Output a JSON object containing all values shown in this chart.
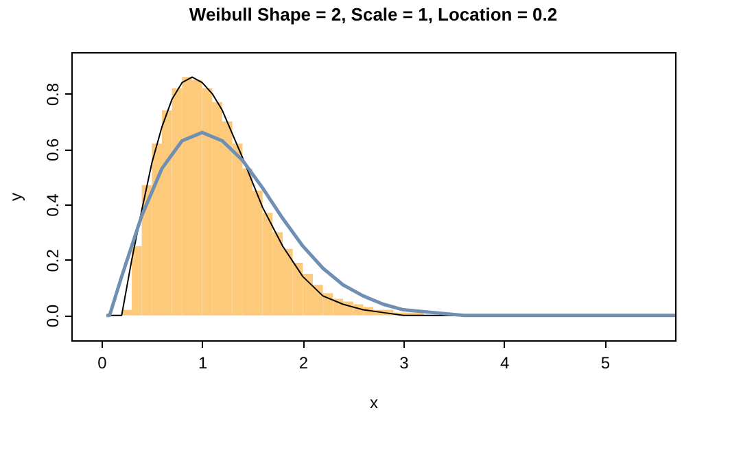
{
  "chart_data": {
    "type": "histogram",
    "title": "Weibull Shape = 2, Scale = 1, Location = 0.2",
    "xlabel": "x",
    "ylabel": "y",
    "bins": [
      0.2,
      0.3,
      0.4,
      0.5,
      0.6,
      0.7,
      0.8,
      0.9,
      1.0,
      1.1,
      1.2,
      1.3,
      1.4,
      1.5,
      1.6,
      1.7,
      1.8,
      1.9,
      2.0,
      2.1,
      2.2,
      2.3,
      2.4,
      2.5,
      2.6,
      2.7,
      2.8,
      2.9,
      3.0,
      3.1,
      3.2
    ],
    "values": [
      0.02,
      0.25,
      0.47,
      0.62,
      0.74,
      0.82,
      0.86,
      0.85,
      0.82,
      0.77,
      0.7,
      0.62,
      0.53,
      0.45,
      0.37,
      0.3,
      0.24,
      0.19,
      0.15,
      0.11,
      0.08,
      0.06,
      0.05,
      0.04,
      0.03,
      0.02,
      0.02,
      0.01,
      0.01,
      0.01
    ],
    "color": "#fdca7c",
    "series": [
      {
        "type": "line",
        "color": "#000000",
        "x": [
          0.05,
          0.2,
          0.3,
          0.4,
          0.5,
          0.6,
          0.7,
          0.8,
          0.9,
          1.0,
          1.1,
          1.2,
          1.4,
          1.6,
          1.8,
          2.0,
          2.2,
          2.4,
          2.6,
          2.8,
          3.0,
          3.3,
          4.0,
          5.7
        ],
        "values": [
          0,
          0,
          0.2,
          0.38,
          0.55,
          0.68,
          0.78,
          0.84,
          0.86,
          0.84,
          0.8,
          0.74,
          0.57,
          0.39,
          0.25,
          0.14,
          0.07,
          0.04,
          0.02,
          0.01,
          0,
          0,
          0,
          0
        ]
      },
      {
        "type": "line",
        "color": "#6f8fb3",
        "x": [
          0.05,
          0.08,
          0.2,
          0.4,
          0.6,
          0.8,
          1.0,
          1.2,
          1.4,
          1.6,
          1.8,
          2.0,
          2.2,
          2.4,
          2.6,
          2.8,
          3.0,
          3.3,
          3.6,
          4.0,
          5.7
        ],
        "values": [
          0,
          0,
          0.14,
          0.36,
          0.53,
          0.63,
          0.66,
          0.63,
          0.56,
          0.46,
          0.35,
          0.25,
          0.17,
          0.11,
          0.07,
          0.04,
          0.02,
          0.01,
          0,
          0,
          0
        ]
      }
    ],
    "xlim": [
      -0.3,
      5.7
    ],
    "ylim": [
      -0.09,
      0.95
    ],
    "xticks": [
      0,
      1,
      2,
      3,
      4,
      5
    ],
    "yticks": [
      {
        "value": 0,
        "label": "0.0"
      },
      {
        "value": 0.2,
        "label": "0.2"
      },
      {
        "value": 0.4,
        "label": "0.4"
      },
      {
        "value": 0.6,
        "label": "0.6"
      },
      {
        "value": 0.8,
        "label": "0.8"
      }
    ],
    "grid": false
  }
}
